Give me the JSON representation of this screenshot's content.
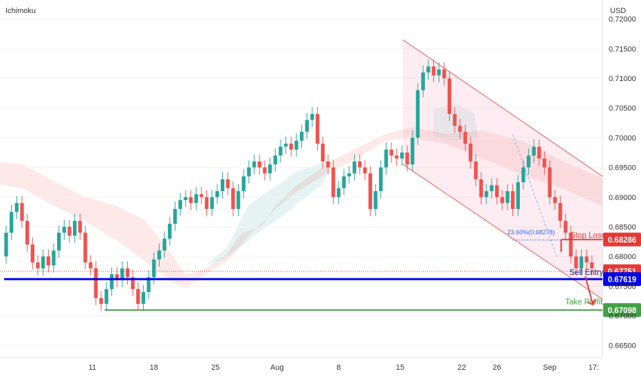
{
  "header": {
    "indicator": "Ichimoku",
    "currency": "USD"
  },
  "chart_data": {
    "type": "candlestick",
    "y_ticks": [
      "0.72000",
      "0.71500",
      "0.71000",
      "0.70500",
      "0.70000",
      "0.69500",
      "0.69000",
      "0.68500",
      "0.68000",
      "0.67500",
      "0.67000",
      "0.66500"
    ],
    "ylim": [
      0.663,
      0.7232
    ],
    "x_ticks": [
      {
        "label": "11",
        "day": 11
      },
      {
        "label": "18",
        "day": 18
      },
      {
        "label": "25",
        "day": 25
      },
      {
        "label": "Aug",
        "day": 32
      },
      {
        "label": "8",
        "day": 39
      },
      {
        "label": "15",
        "day": 46
      },
      {
        "label": "22",
        "day": 53
      },
      {
        "label": "26",
        "day": 57
      },
      {
        "label": "Sep",
        "day": 63
      },
      {
        "label": "17:",
        "day": 68
      }
    ],
    "xlim": [
      0.5,
      69
    ],
    "bull_color": "#26a69a",
    "bear_color": "#ef5350",
    "candle_closes": [
      [
        0.5,
        0.68
      ],
      [
        1.2,
        0.684
      ],
      [
        1.8,
        0.6875
      ],
      [
        2.4,
        0.689
      ],
      [
        3.0,
        0.686
      ],
      [
        3.6,
        0.682
      ],
      [
        4.2,
        0.679
      ],
      [
        4.8,
        0.678
      ],
      [
        5.4,
        0.68
      ],
      [
        6.0,
        0.6785
      ],
      [
        6.6,
        0.681
      ],
      [
        7.2,
        0.684
      ],
      [
        7.8,
        0.685
      ],
      [
        8.4,
        0.6835
      ],
      [
        9.0,
        0.686
      ],
      [
        9.6,
        0.684
      ],
      [
        10.2,
        0.679
      ],
      [
        10.8,
        0.678
      ],
      [
        11.4,
        0.673
      ],
      [
        12.0,
        0.672
      ],
      [
        12.6,
        0.6745
      ],
      [
        13.2,
        0.677
      ],
      [
        13.8,
        0.676
      ],
      [
        14.4,
        0.678
      ],
      [
        15.0,
        0.6765
      ],
      [
        15.6,
        0.6745
      ],
      [
        16.2,
        0.672
      ],
      [
        16.8,
        0.674
      ],
      [
        17.4,
        0.6765
      ],
      [
        18.0,
        0.6795
      ],
      [
        18.6,
        0.681
      ],
      [
        19.2,
        0.683
      ],
      [
        19.8,
        0.6855
      ],
      [
        20.4,
        0.688
      ],
      [
        21.0,
        0.6895
      ],
      [
        21.6,
        0.69
      ],
      [
        22.2,
        0.689
      ],
      [
        22.8,
        0.6905
      ],
      [
        23.4,
        0.69
      ],
      [
        24.0,
        0.688
      ],
      [
        24.6,
        0.69
      ],
      [
        25.2,
        0.691
      ],
      [
        25.8,
        0.693
      ],
      [
        26.4,
        0.6915
      ],
      [
        27.0,
        0.688
      ],
      [
        27.6,
        0.691
      ],
      [
        28.2,
        0.6935
      ],
      [
        28.8,
        0.695
      ],
      [
        29.4,
        0.696
      ],
      [
        30.0,
        0.695
      ],
      [
        30.6,
        0.694
      ],
      [
        31.2,
        0.6955
      ],
      [
        31.8,
        0.697
      ],
      [
        32.4,
        0.6985
      ],
      [
        33.0,
        0.699
      ],
      [
        33.6,
        0.698
      ],
      [
        34.2,
        0.6995
      ],
      [
        34.8,
        0.701
      ],
      [
        35.4,
        0.703
      ],
      [
        36.0,
        0.704
      ],
      [
        36.6,
        0.699
      ],
      [
        37.2,
        0.696
      ],
      [
        37.8,
        0.695
      ],
      [
        38.4,
        0.69
      ],
      [
        39.0,
        0.6915
      ],
      [
        39.6,
        0.6935
      ],
      [
        40.2,
        0.694
      ],
      [
        40.8,
        0.696
      ],
      [
        41.4,
        0.695
      ],
      [
        42.0,
        0.694
      ],
      [
        42.6,
        0.688
      ],
      [
        43.2,
        0.691
      ],
      [
        43.8,
        0.695
      ],
      [
        44.4,
        0.698
      ],
      [
        45.0,
        0.697
      ],
      [
        45.6,
        0.6965
      ],
      [
        46.2,
        0.6975
      ],
      [
        46.8,
        0.6955
      ],
      [
        47.4,
        0.7
      ],
      [
        48.0,
        0.708
      ],
      [
        48.6,
        0.711
      ],
      [
        49.2,
        0.712
      ],
      [
        49.8,
        0.7105
      ],
      [
        50.4,
        0.7115
      ],
      [
        51.0,
        0.71
      ],
      [
        51.6,
        0.704
      ],
      [
        52.2,
        0.702
      ],
      [
        52.8,
        0.701
      ],
      [
        53.4,
        0.699
      ],
      [
        54.0,
        0.696
      ],
      [
        54.6,
        0.693
      ],
      [
        55.2,
        0.69
      ],
      [
        55.8,
        0.691
      ],
      [
        56.4,
        0.692
      ],
      [
        57.0,
        0.69
      ],
      [
        57.6,
        0.689
      ],
      [
        58.2,
        0.691
      ],
      [
        58.8,
        0.688
      ],
      [
        59.4,
        0.6925
      ],
      [
        60.0,
        0.695
      ],
      [
        60.6,
        0.697
      ],
      [
        61.2,
        0.6985
      ],
      [
        61.8,
        0.6965
      ],
      [
        62.4,
        0.695
      ],
      [
        63.0,
        0.69
      ],
      [
        63.6,
        0.689
      ],
      [
        64.2,
        0.686
      ],
      [
        64.8,
        0.684
      ],
      [
        65.4,
        0.68
      ],
      [
        66.0,
        0.678
      ],
      [
        66.6,
        0.68
      ],
      [
        67.2,
        0.679
      ],
      [
        67.8,
        0.678
      ]
    ],
    "channel": {
      "upper": [
        [
          46.3,
          0.7165
        ],
        [
          69,
          0.6935
        ]
      ],
      "lower": [
        [
          46.3,
          0.6955
        ],
        [
          69,
          0.6728
        ]
      ],
      "color": "#e57373"
    },
    "levels": [
      {
        "name": "Stop Loss",
        "price": 0.68286,
        "label": "0.68286",
        "color": "#e53935",
        "from_day": 64.3
      },
      {
        "name": "Sell Entry",
        "price": 0.67751,
        "label": "0.67751",
        "color": "#e53935",
        "from_day": 0.5
      },
      {
        "name": "",
        "price": 0.67619,
        "label": "0.67619",
        "color": "#0000ee",
        "from_day": 0.5
      },
      {
        "name": "Take Profit",
        "price": 0.67098,
        "label": "0.67098",
        "color": "#43a047",
        "from_day": 12.4
      }
    ],
    "fib": {
      "label": "23.60%(0.68278)",
      "price": 0.68278,
      "from_day": 58.8,
      "to_day": 64.2
    },
    "annotations": {
      "stop_loss": "Stop Loss",
      "sell_entry": "Sell Entry",
      "take_profit": "Take Profit"
    }
  }
}
